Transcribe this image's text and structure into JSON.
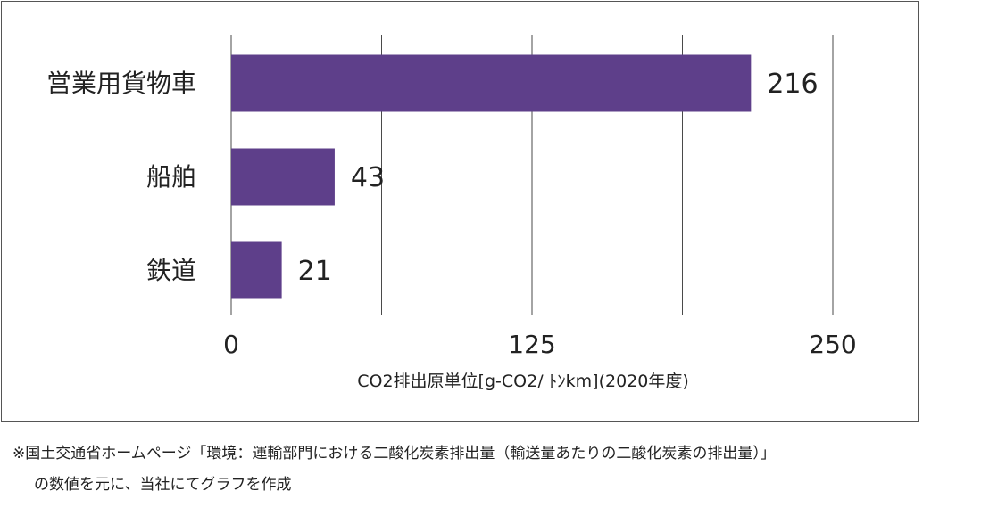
{
  "chart_data": {
    "type": "bar",
    "orientation": "horizontal",
    "categories": [
      "営業用貨物車",
      "船舶",
      "鉄道"
    ],
    "values": [
      216,
      43,
      21
    ],
    "xlabel": "CO2排出原単位[g-CO2/ ﾄﾝkm](2020年度)",
    "ylabel": "",
    "xlim": [
      0,
      250
    ],
    "xticks": [
      0,
      125,
      250
    ],
    "grid": true,
    "bar_color": "#5e3f8a"
  },
  "footnote": {
    "line1": "※国土交通省ホームページ「環境：運輸部門における二酸化炭素排出量（輸送量あたりの二酸化炭素の排出量）」",
    "line2": "の数値を元に、当社にてグラフを作成"
  }
}
